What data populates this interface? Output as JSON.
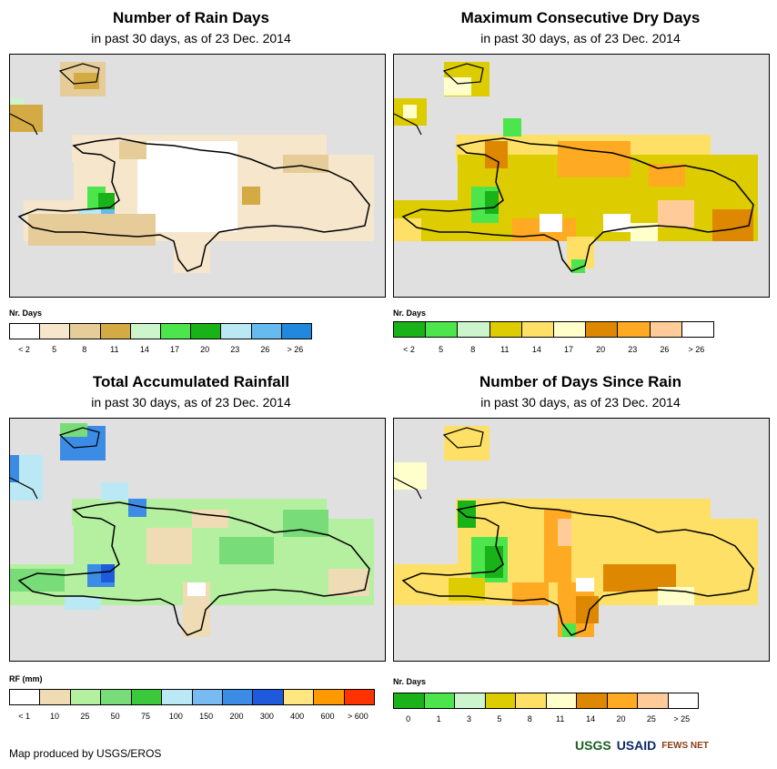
{
  "panels": {
    "rain_days": {
      "title": "Number of Rain Days",
      "subtitle": "in past 30 days, as of 23 Dec. 2014",
      "legend_title": "Nr. Days",
      "legend_colors": [
        "#ffffff",
        "#f5e6cc",
        "#e6cc99",
        "#d4aa44",
        "#ccf5cc",
        "#4ce64c",
        "#19b319",
        "#bbe8f5",
        "#66bbee",
        "#2288dd"
      ],
      "legend_labels": [
        "< 2",
        "5",
        "8",
        "11",
        "14",
        "17",
        "20",
        "23",
        "26",
        "> 26"
      ]
    },
    "dry_days": {
      "title": "Maximum Consecutive Dry Days",
      "subtitle": "in past 30 days, as of 23 Dec. 2014",
      "legend_title": "Nr. Days",
      "legend_colors": [
        "#19b319",
        "#4ce64c",
        "#ccf5cc",
        "#ddcc00",
        "#ffe066",
        "#ffffcc",
        "#dd8800",
        "#ffaa22",
        "#ffcc99",
        "#ffffff"
      ],
      "legend_labels": [
        "< 2",
        "5",
        "8",
        "11",
        "14",
        "17",
        "20",
        "23",
        "26",
        "> 26"
      ]
    },
    "rainfall": {
      "title": "Total Accumulated Rainfall",
      "subtitle": "in past 30 days, as of 23 Dec. 2014",
      "legend_title": "RF (mm)",
      "legend_colors": [
        "#ffffff",
        "#f0dcb4",
        "#b4f0a0",
        "#78dc78",
        "#3cc83c",
        "#bbe8f5",
        "#78bbf0",
        "#3c8ce6",
        "#1e5adc",
        "#ffe680",
        "#ff9900",
        "#ff3300"
      ],
      "legend_labels": [
        "< 1",
        "10",
        "25",
        "50",
        "75",
        "100",
        "150",
        "200",
        "300",
        "400",
        "600",
        "> 600"
      ]
    },
    "since_rain": {
      "title": "Number of Days Since Rain",
      "subtitle": "in past 30 days, as of 23 Dec. 2014",
      "legend_title": "Nr. Days",
      "legend_colors": [
        "#19b319",
        "#4ce64c",
        "#ccf5cc",
        "#ddcc00",
        "#ffe066",
        "#ffffcc",
        "#dd8800",
        "#ffaa22",
        "#ffcc99",
        "#ffffff"
      ],
      "legend_labels": [
        "0",
        "1",
        "3",
        "5",
        "8",
        "11",
        "14",
        "20",
        "25",
        "> 25"
      ]
    }
  },
  "credit": "Map produced by USGS/EROS",
  "logos": [
    "USGS",
    "USAID",
    "FEWS NET"
  ]
}
